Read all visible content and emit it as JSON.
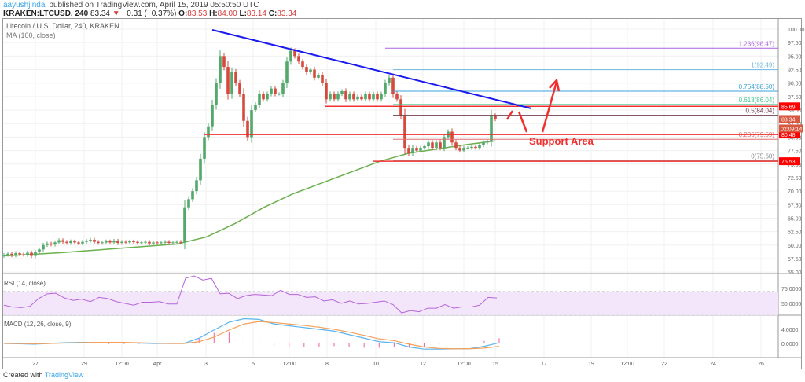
{
  "header": {
    "user": "aayushjindal",
    "published": "published on TradingView.com, April 15, 2019 05:50:50 UTC",
    "symbol": "KRAKEN:LTCUSD, 240",
    "last": "83.34",
    "change": "−0.31 (−0.37%)",
    "change_icon": "triangle-down-icon",
    "o_label": "O:",
    "o": "83.53",
    "h_label": "H:",
    "h": "84.00",
    "l_label": "L:",
    "l": "83.14",
    "c_label": "C:",
    "c": "83.34"
  },
  "legend": {
    "title": "Litecoin / U.S. Dollar, 240, KRAKEN",
    "ma": "MA (100, close)",
    "rsi": "RSI (14, close)",
    "macd": "MACD (12, 26, close, 9)"
  },
  "annotation": {
    "support": "Support Area"
  },
  "footer": {
    "created": "Created with",
    "brand": "TradingView"
  },
  "colors": {
    "up": "#53a86b",
    "down": "#d64a3e",
    "ma": "#6ab04c",
    "trend": "#1a1aee",
    "support": "#f03030"
  },
  "chart_data": [
    {
      "type": "candlestick",
      "title": "Litecoin / U.S. Dollar, 240, KRAKEN",
      "ylim": [
        55,
        101
      ],
      "y_ticks": [
        "100.00",
        "97.50",
        "95.00",
        "92.50",
        "90.00",
        "87.50",
        "85.00",
        "82.50",
        "80.00",
        "77.50",
        "75.00",
        "72.50",
        "70.00",
        "67.50",
        "65.00",
        "62.50",
        "60.00",
        "57.50",
        "55.00"
      ],
      "x_ticks": [
        "27",
        "29",
        "12:00",
        "Apr",
        "3",
        "5",
        "12:00",
        "8",
        "10",
        "12",
        "12:00",
        "15",
        "17",
        "19",
        "12:00",
        "22",
        "24",
        "26"
      ],
      "closes": [
        58.2,
        58.4,
        58.1,
        58.5,
        58.3,
        58.2,
        58.6,
        58.0,
        58.7,
        59.2,
        60.0,
        60.3,
        60.1,
        60.5,
        60.9,
        60.6,
        60.4,
        60.7,
        60.5,
        60.3,
        60.6,
        60.8,
        61.0,
        60.6,
        60.4,
        60.5,
        60.7,
        60.5,
        60.8,
        60.4,
        60.6,
        60.5,
        60.7,
        60.6,
        60.4,
        60.5,
        60.6,
        60.3,
        60.5,
        60.4,
        60.5,
        60.6,
        60.4,
        60.5,
        60.6,
        60.5,
        67.0,
        68.5,
        70.0,
        72.0,
        76.0,
        80.0,
        82.0,
        86.0,
        90.0,
        95.0,
        93.0,
        88.0,
        92.0,
        90.0,
        88.0,
        83.0,
        80.0,
        85.0,
        86.0,
        88.0,
        87.0,
        88.0,
        89.0,
        88.0,
        88.0,
        90.0,
        94.0,
        96.0,
        95.0,
        94.0,
        93.0,
        92.0,
        92.5,
        91.0,
        91.5,
        90.0,
        87.0,
        88.0,
        87.0,
        88.0,
        88.5,
        87.0,
        88.0,
        87.0,
        87.5,
        87.0,
        88.0,
        87.0,
        88.0,
        87.0,
        88.0,
        90.0,
        91.0,
        88.0,
        87.0,
        84.0,
        78.0,
        77.0,
        78.0,
        77.5,
        78.0,
        78.3,
        79.0,
        78.0,
        79.0,
        78.0,
        80.0,
        81.0,
        79.0,
        78.0,
        77.5,
        78.0,
        78.0,
        78.2,
        78.0,
        78.5,
        79.0,
        79.2,
        84.0,
        83.34
      ],
      "ma": [
        58.0,
        58.3,
        58.6,
        59.0,
        59.4,
        59.8,
        60.2,
        61.5,
        64.0,
        67.0,
        69.5,
        71.5,
        73.5,
        75.5,
        77.0,
        77.8,
        78.6,
        79.3
      ],
      "current_price": "83.34",
      "countdown": "02:09:14",
      "horizontal_levels": [
        {
          "label": "85.69",
          "value": 85.69
        },
        {
          "label": "80.48",
          "value": 80.48
        },
        {
          "label": "75.53",
          "value": 75.53
        }
      ],
      "fibonacci": [
        {
          "label": "1.236(96.47)",
          "value": 96.47,
          "color": "#b060e0"
        },
        {
          "label": "1(92.49)",
          "value": 92.49,
          "color": "#70b8e0"
        },
        {
          "label": "0.764(88.50)",
          "value": 88.5,
          "color": "#3aa0d8"
        },
        {
          "label": "0.618(86.04)",
          "value": 86.04,
          "color": "#40c890"
        },
        {
          "label": "0.5(84.04)",
          "value": 84.04,
          "color": "#704050"
        },
        {
          "label": "0.236(79.59)",
          "value": 79.59,
          "color": "#e07070"
        },
        {
          "label": "0(75.60)",
          "value": 75.6,
          "color": "#888888"
        }
      ]
    },
    {
      "type": "line",
      "title": "RSI (14, close)",
      "ylim": [
        25,
        100
      ],
      "y_ticks": [
        "75.0000",
        "50.0000"
      ],
      "band": [
        30,
        70
      ],
      "values": [
        47,
        44,
        43,
        45,
        58,
        66,
        67,
        59,
        55,
        57,
        53,
        60,
        58,
        53,
        50,
        47,
        52,
        52,
        53,
        49,
        49,
        92,
        96,
        89,
        92,
        66,
        67,
        58,
        63,
        65,
        64,
        63,
        72,
        65,
        65,
        60,
        61,
        54,
        56,
        50,
        54,
        49,
        50,
        52,
        54,
        48,
        34,
        38,
        36,
        42,
        42,
        48,
        42,
        44,
        44,
        47,
        60,
        59
      ]
    },
    {
      "type": "line",
      "title": "MACD (12, 26, close, 9)",
      "ylim": [
        -2,
        8
      ],
      "y_ticks": [
        "4.0000",
        "0.0000"
      ],
      "macd": [
        0,
        -0.1,
        -0.2,
        0,
        0.2,
        0.3,
        0.3,
        0.2,
        0.2,
        0.1,
        0,
        0,
        0,
        1.5,
        3.8,
        6.0,
        7.0,
        6.8,
        5.5,
        5.0,
        4.5,
        4.0,
        3.5,
        2.5,
        1.5,
        0.5,
        0.2,
        -1.0,
        -1.6,
        -1.6,
        -1.5,
        -1.5,
        -0.8,
        0.2
      ],
      "signal": [
        0,
        0,
        -0.1,
        0,
        0.1,
        0.2,
        0.3,
        0.3,
        0.3,
        0.2,
        0.1,
        0,
        0,
        0.5,
        1.8,
        3.8,
        5.5,
        6.2,
        5.9,
        5.5,
        5.1,
        4.6,
        4.0,
        3.2,
        2.3,
        1.3,
        0.8,
        -0.2,
        -1.0,
        -1.4,
        -1.5,
        -1.5,
        -1.3,
        -0.8
      ]
    }
  ]
}
